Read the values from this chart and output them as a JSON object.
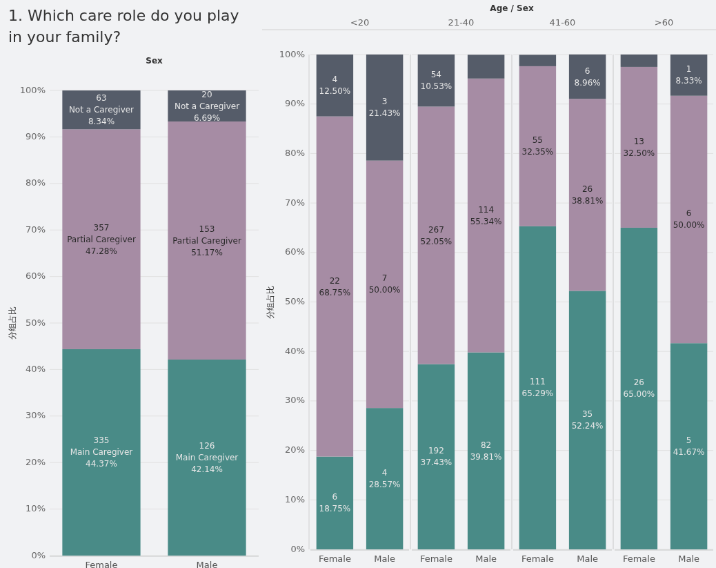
{
  "chart_data": [
    {
      "type": "bar",
      "title": "1. Which care role do you play in your family?",
      "xlabel": "Sex",
      "ylabel": "分组占比",
      "categories": [
        "Female",
        "Male"
      ],
      "stacked": true,
      "grid": "y",
      "ylim": [
        0,
        100
      ],
      "yticks": [
        {
          "value": 0,
          "label": "0%"
        },
        {
          "value": 10,
          "label": "10%"
        },
        {
          "value": 20,
          "label": "20%"
        },
        {
          "value": 30,
          "label": "30%"
        },
        {
          "value": 40,
          "label": "40%"
        },
        {
          "value": 50,
          "label": "50%"
        },
        {
          "value": 60,
          "label": "60%"
        },
        {
          "value": 70,
          "label": "70%"
        },
        {
          "value": 80,
          "label": "80%"
        },
        {
          "value": 90,
          "label": "90%"
        },
        {
          "value": 100,
          "label": "100%"
        }
      ],
      "series": [
        {
          "color": "#498b87",
          "values": [
            44.37,
            42.14
          ],
          "value_labels": [
            "335\nMain Caregiver\n44.37%",
            "126\nMain Caregiver\n42.14%"
          ]
        },
        {
          "color": "#a68ca4",
          "values": [
            47.28,
            51.17
          ],
          "value_labels": [
            "357\nPartial Caregiver\n47.28%",
            "153\nPartial Caregiver\n51.17%"
          ]
        },
        {
          "color": "#555c69",
          "values": [
            8.34,
            6.69
          ],
          "value_labels": [
            "63\nNot a Caregiver\n8.34%",
            "20\nNot a Caregiver\n6.69%"
          ]
        }
      ]
    },
    {
      "type": "bar",
      "title": "<20",
      "ylabel": "分组占比",
      "annotations": [
        "Age / Sex"
      ],
      "categories": [
        "Female",
        "Male"
      ],
      "stacked": true,
      "grid": "y",
      "ylim": [
        0,
        100
      ],
      "yticks": [
        {
          "value": 0,
          "label": "0%"
        },
        {
          "value": 10,
          "label": "10%"
        },
        {
          "value": 20,
          "label": "20%"
        },
        {
          "value": 30,
          "label": "30%"
        },
        {
          "value": 40,
          "label": "40%"
        },
        {
          "value": 50,
          "label": "50%"
        },
        {
          "value": 60,
          "label": "60%"
        },
        {
          "value": 70,
          "label": "70%"
        },
        {
          "value": 80,
          "label": "80%"
        },
        {
          "value": 90,
          "label": "90%"
        },
        {
          "value": 100,
          "label": "100%"
        }
      ],
      "series": [
        {
          "color": "#498b87",
          "values": [
            18.75,
            28.57
          ],
          "value_labels": [
            "6\n18.75%",
            "4\n28.57%"
          ]
        },
        {
          "color": "#a68ca4",
          "values": [
            68.75,
            50.0
          ],
          "value_labels": [
            "22\n68.75%",
            "7\n50.00%"
          ]
        },
        {
          "color": "#555c69",
          "values": [
            12.5,
            21.43
          ],
          "value_labels": [
            "4\n12.50%",
            "3\n21.43%"
          ]
        }
      ]
    },
    {
      "type": "bar",
      "title": "21-40",
      "categories": [
        "Female",
        "Male"
      ],
      "stacked": true,
      "grid": "y",
      "tick_labels": "x",
      "ylim": [
        0,
        100
      ],
      "series": [
        {
          "color": "#498b87",
          "values": [
            37.43,
            39.81
          ],
          "value_labels": [
            "192\n37.43%",
            "82\n39.81%"
          ]
        },
        {
          "color": "#a68ca4",
          "values": [
            52.05,
            55.34
          ],
          "value_labels": [
            "267\n52.05%",
            "114\n55.34%"
          ]
        },
        {
          "color": "#555c69",
          "values": [
            10.53,
            4.8
          ],
          "value_labels": [
            "54\n10.53%",
            null
          ]
        }
      ]
    },
    {
      "type": "bar",
      "title": "41-60",
      "categories": [
        "Female",
        "Male"
      ],
      "stacked": true,
      "grid": "y",
      "tick_labels": "x",
      "ylim": [
        0,
        100
      ],
      "series": [
        {
          "color": "#498b87",
          "values": [
            65.29,
            52.24
          ],
          "value_labels": [
            "111\n65.29%",
            "35\n52.24%"
          ]
        },
        {
          "color": "#a68ca4",
          "values": [
            32.35,
            38.81
          ],
          "value_labels": [
            "55\n32.35%",
            "26\n38.81%"
          ]
        },
        {
          "color": "#555c69",
          "values": [
            2.3,
            8.96
          ],
          "value_labels": [
            null,
            "6\n8.96%"
          ]
        }
      ]
    },
    {
      "type": "bar",
      "title": ">60",
      "categories": [
        "Female",
        "Male"
      ],
      "stacked": true,
      "grid": "y",
      "tick_labels": "x",
      "ylim": [
        0,
        100
      ],
      "series": [
        {
          "color": "#498b87",
          "values": [
            65.0,
            41.67
          ],
          "value_labels": [
            "26\n65.00%",
            "5\n41.67%"
          ]
        },
        {
          "color": "#a68ca4",
          "values": [
            32.5,
            50.0
          ],
          "value_labels": [
            "13\n32.50%",
            "6\n50.00%"
          ]
        },
        {
          "color": "#555c69",
          "values": [
            2.5,
            8.33
          ],
          "value_labels": [
            null,
            "1\n8.33%"
          ]
        }
      ]
    }
  ]
}
